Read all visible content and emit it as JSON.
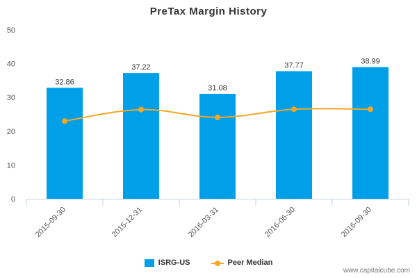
{
  "chart_data": {
    "type": "bar",
    "title": "PreTax Margin History",
    "categories": [
      "2015-09-30",
      "2015-12-31",
      "2016-03-31",
      "2016-06-30",
      "2016-09-30"
    ],
    "series": [
      {
        "name": "ISRG-US",
        "type": "bar",
        "values": [
          32.86,
          37.22,
          31.08,
          37.77,
          38.99
        ],
        "color": "#00a0e9",
        "data_labels": [
          "32.86",
          "37.22",
          "31.08",
          "37.77",
          "38.99"
        ]
      },
      {
        "name": "Peer Median",
        "type": "line",
        "values": [
          23.0,
          26.4,
          24.1,
          26.5,
          26.5
        ],
        "color": "#f5a623"
      }
    ],
    "xlabel": "",
    "ylabel": "",
    "ylim": [
      0,
      50
    ],
    "yticks": [
      "0",
      "10",
      "20",
      "30",
      "40",
      "50"
    ],
    "grid": false,
    "legend_position": "bottom"
  },
  "watermark": "www.capitalcube.com",
  "colors": {
    "bar": "#00a0e9",
    "line": "#f5a623",
    "axis": "#c0d0e0",
    "text": "#333333"
  }
}
